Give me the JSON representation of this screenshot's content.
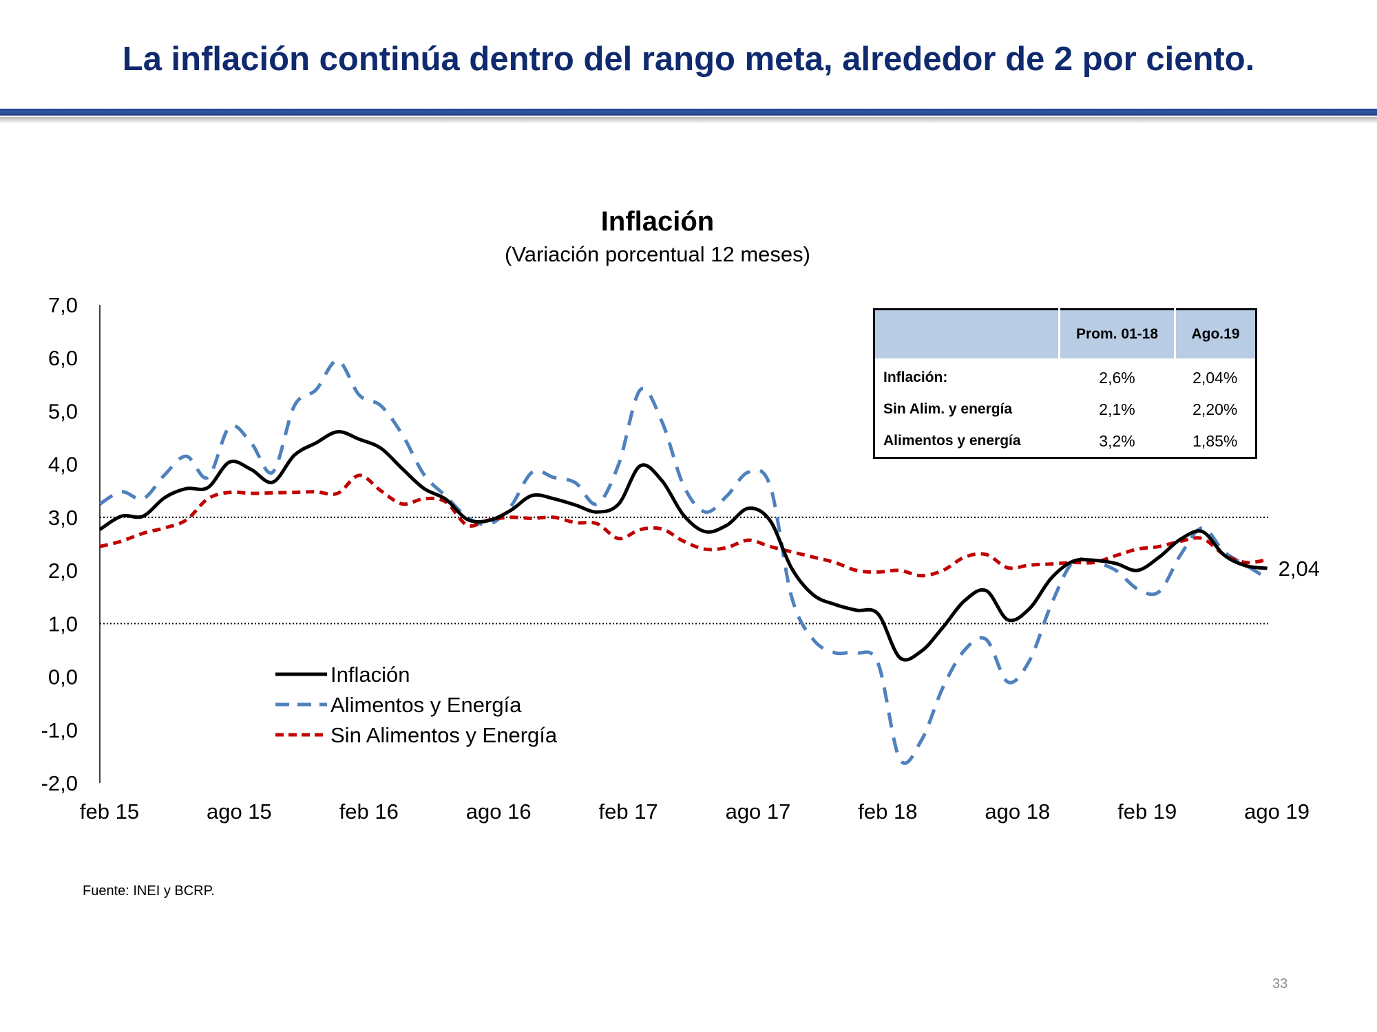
{
  "slide": {
    "title": "La inflación continúa dentro del rango meta, alrededor de 2 por ciento.",
    "source": "Fuente: INEI y BCRP.",
    "page_number": "33"
  },
  "colors": {
    "inflacion": "#000000",
    "alimentos": "#4f81bd",
    "sin_alimentos": "#c00000",
    "title": "#0f2a6e",
    "table_header": "#b8cce4"
  },
  "table": {
    "headers": [
      "",
      "Prom. 01-18",
      "Ago.19"
    ],
    "rows": [
      {
        "label": "Inflación:",
        "prom": "2,6%",
        "ago": "2,04%"
      },
      {
        "label": "Sin Alim. y energía",
        "prom": "2,1%",
        "ago": "2,20%"
      },
      {
        "label": "Alimentos y energía",
        "prom": "3,2%",
        "ago": "1,85%"
      }
    ]
  },
  "chart_data": {
    "type": "line",
    "title": "Inflación",
    "subtitle": "(Variación porcentual 12 meses)",
    "ylim": [
      -2,
      7
    ],
    "y_ticks": [
      "7,0",
      "6,0",
      "5,0",
      "4,0",
      "3,0",
      "2,0",
      "1,0",
      "0,0",
      "-1,0",
      "-2,0"
    ],
    "x_tick_labels": [
      "feb 15",
      "ago 15",
      "feb 16",
      "ago 16",
      "feb 17",
      "ago 17",
      "feb 18",
      "ago 18",
      "feb 19",
      "ago 19"
    ],
    "x_tick_indices": [
      0,
      6,
      12,
      18,
      24,
      30,
      36,
      42,
      48,
      54
    ],
    "reference_lines": [
      3.0,
      1.0
    ],
    "end_label": "2,04",
    "legend": [
      "Inflación",
      "Alimentos y Energía",
      "Sin Alimentos y Energía"
    ],
    "categories": [
      "feb 15",
      "mar 15",
      "abr 15",
      "may 15",
      "jun 15",
      "jul 15",
      "ago 15",
      "sep 15",
      "oct 15",
      "nov 15",
      "dic 15",
      "ene 16",
      "feb 16",
      "mar 16",
      "abr 16",
      "may 16",
      "jun 16",
      "jul 16",
      "ago 16",
      "sep 16",
      "oct 16",
      "nov 16",
      "dic 16",
      "ene 17",
      "feb 17",
      "mar 17",
      "abr 17",
      "may 17",
      "jun 17",
      "jul 17",
      "ago 17",
      "sep 17",
      "oct 17",
      "nov 17",
      "dic 17",
      "ene 18",
      "feb 18",
      "mar 18",
      "abr 18",
      "may 18",
      "jun 18",
      "jul 18",
      "ago 18",
      "sep 18",
      "oct 18",
      "nov 18",
      "dic 18",
      "ene 19",
      "feb 19",
      "mar 19",
      "abr 19",
      "may 19",
      "jun 19",
      "jul 19",
      "ago 19"
    ],
    "series": [
      {
        "name": "Inflación",
        "key": "inflacion",
        "dash": "solid",
        "values": [
          2.77,
          3.02,
          3.02,
          3.37,
          3.54,
          3.56,
          4.04,
          3.9,
          3.66,
          4.17,
          4.4,
          4.61,
          4.47,
          4.3,
          3.91,
          3.54,
          3.34,
          2.96,
          2.94,
          3.13,
          3.41,
          3.35,
          3.23,
          3.1,
          3.25,
          3.97,
          3.69,
          3.04,
          2.73,
          2.85,
          3.17,
          2.94,
          2.04,
          1.54,
          1.36,
          1.25,
          1.18,
          0.36,
          0.48,
          0.93,
          1.43,
          1.62,
          1.07,
          1.28,
          1.85,
          2.17,
          2.19,
          2.13,
          2.0,
          2.25,
          2.59,
          2.73,
          2.29,
          2.09,
          2.04
        ]
      },
      {
        "name": "Alimentos y Energía",
        "key": "alimentos",
        "dash": "dashed",
        "values": [
          3.25,
          3.48,
          3.35,
          3.8,
          4.15,
          3.75,
          4.7,
          4.4,
          3.85,
          5.1,
          5.4,
          5.95,
          5.3,
          5.1,
          4.55,
          3.8,
          3.4,
          3.0,
          2.87,
          3.2,
          3.85,
          3.75,
          3.65,
          3.25,
          4.0,
          5.4,
          4.8,
          3.6,
          3.1,
          3.4,
          3.85,
          3.6,
          1.5,
          0.7,
          0.45,
          0.45,
          0.25,
          -1.55,
          -1.2,
          -0.2,
          0.5,
          0.7,
          -0.1,
          0.3,
          1.35,
          2.15,
          2.15,
          2.0,
          1.65,
          1.6,
          2.3,
          2.8,
          2.35,
          2.1,
          1.85
        ]
      },
      {
        "name": "Sin Alimentos y Energía",
        "key": "sin_alimentos",
        "dash": "dashed",
        "values": [
          2.45,
          2.55,
          2.7,
          2.8,
          2.95,
          3.35,
          3.47,
          3.45,
          3.46,
          3.47,
          3.48,
          3.45,
          3.79,
          3.5,
          3.25,
          3.35,
          3.29,
          2.85,
          2.95,
          3.0,
          2.98,
          3.0,
          2.9,
          2.88,
          2.6,
          2.77,
          2.78,
          2.55,
          2.4,
          2.43,
          2.57,
          2.45,
          2.35,
          2.25,
          2.15,
          2.0,
          1.97,
          2.0,
          1.9,
          2.0,
          2.25,
          2.3,
          2.05,
          2.1,
          2.12,
          2.15,
          2.15,
          2.28,
          2.4,
          2.45,
          2.55,
          2.6,
          2.3,
          2.15,
          2.2
        ]
      }
    ]
  }
}
